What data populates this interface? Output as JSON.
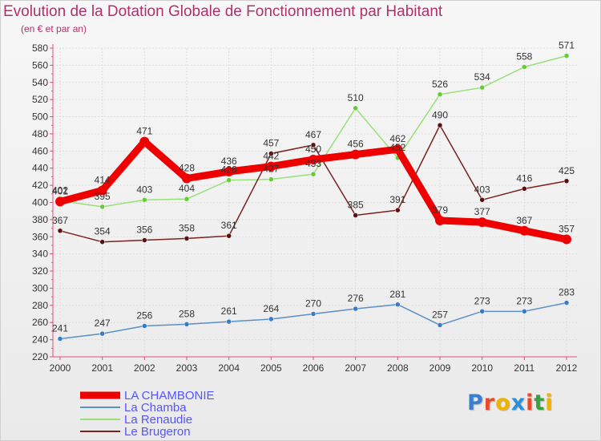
{
  "title": "Evolution de la Dotation Globale de Fonctionnement par Habitant",
  "subtitle": "(en € et par an)",
  "logo": {
    "text": "Proxiti",
    "letters": [
      "P",
      "r",
      "o",
      "x",
      "i",
      "t",
      "i"
    ],
    "colors": [
      "#3a7fd0",
      "#e84a2a",
      "#f0b400",
      "#2c8fd6",
      "#e84a2a",
      "#3aa03a",
      "#f0b400"
    ]
  },
  "chart_data": {
    "type": "line",
    "title": "Evolution de la Dotation Globale de Fonctionnement par Habitant",
    "subtitle": "(en € et par an)",
    "xlabel": "",
    "ylabel": "",
    "x": [
      "2000",
      "2001",
      "2002",
      "2003",
      "2004",
      "2005",
      "2006",
      "2007",
      "2008",
      "2009",
      "2010",
      "2011",
      "2012"
    ],
    "ylim": [
      220,
      580
    ],
    "yticks": [
      220,
      240,
      260,
      280,
      300,
      320,
      340,
      360,
      380,
      400,
      420,
      440,
      460,
      480,
      500,
      520,
      540,
      560,
      580
    ],
    "grid": true,
    "legend_position": "bottom-left",
    "series": [
      {
        "name": "La Chamba",
        "color": "#5b8fc7",
        "marker": "#3a7bc8",
        "values": [
          241,
          247,
          256,
          258,
          261,
          264,
          270,
          276,
          281,
          257,
          273,
          273,
          283
        ],
        "labels": [
          "241",
          "247",
          "256",
          "258",
          "261",
          "264",
          "270",
          "276",
          "281",
          "257",
          "273",
          "273",
          "283"
        ]
      },
      {
        "name": "La Renaudie",
        "color": "#99e07a",
        "marker": "#66cc33",
        "values": [
          402,
          395,
          403,
          404,
          426,
          427,
          433,
          510,
          452,
          526,
          534,
          558,
          571
        ],
        "labels": [
          "402",
          "395",
          "403",
          "404",
          "426",
          "427",
          "433",
          "510",
          "452",
          "526",
          "534",
          "558",
          "571"
        ]
      },
      {
        "name": "Le Brugeron",
        "color": "#7a2222",
        "marker": "#5a1010",
        "values": [
          367,
          354,
          356,
          358,
          361,
          457,
          467,
          385,
          391,
          490,
          403,
          416,
          425
        ],
        "labels": [
          "367",
          "354",
          "356",
          "358",
          "361",
          "457",
          "467",
          "385",
          "391",
          "490",
          "403",
          "416",
          "425"
        ]
      },
      {
        "name": "LA CHAMBONIE",
        "color": "#ee0000",
        "marker": "#ee0000",
        "values": [
          401,
          414,
          471,
          428,
          436,
          442,
          450,
          456,
          462,
          379,
          377,
          367,
          357
        ],
        "labels": [
          "401",
          "414",
          "471",
          "428",
          "436",
          "442",
          "450",
          "456",
          "462",
          "379",
          "377",
          "367",
          "357"
        ]
      }
    ],
    "legend": [
      "LA CHAMBONIE",
      "La Chamba",
      "La Renaudie",
      "Le Brugeron"
    ]
  }
}
